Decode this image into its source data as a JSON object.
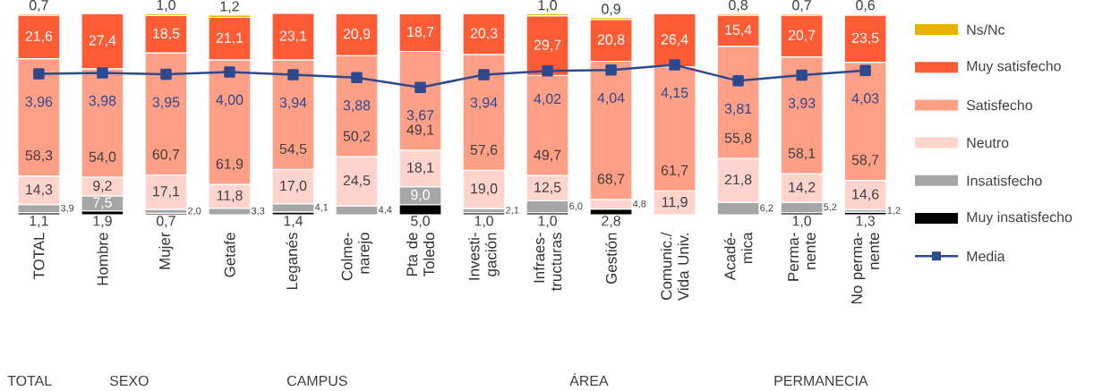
{
  "chart_data": {
    "type": "bar",
    "stacked": true,
    "tick_labels": "x",
    "legend": "right",
    "y2lim": [
      0.95,
      5.25
    ],
    "categories": [
      "TOTAL",
      "Hombre",
      "Mujer",
      "Getafe",
      "Leganés",
      "Colme-narejo",
      "Pta de Toledo",
      "Investi-gación",
      "Infraes-tructuras",
      "Gestión",
      "Comunic./ Vida Univ.",
      "Acadé-mica",
      "Perma-nente",
      "No perma-nente"
    ],
    "series": [
      {
        "name": "Muy insatisfecho",
        "color": "#000000",
        "values": [
          1.1,
          1.9,
          0.7,
          null,
          1.4,
          null,
          5.0,
          1.0,
          1.0,
          2.8,
          null,
          null,
          1.0,
          1.3
        ],
        "value_labels": [
          "1,1",
          "1,9",
          "0,7",
          null,
          "1,4",
          null,
          "5,0",
          "1,0",
          "1,0",
          "2,8",
          null,
          null,
          "1,0",
          "1,3"
        ]
      },
      {
        "name": "Insatisfecho",
        "color": "#a6a6a6",
        "values": [
          3.9,
          7.5,
          2.0,
          3.3,
          4.1,
          4.4,
          9.0,
          2.1,
          6.0,
          null,
          null,
          6.2,
          5.2,
          1.2
        ],
        "value_labels": [
          "3,9",
          "7,5",
          "2,0",
          "3,3",
          "4,1",
          "4,4",
          "9,0",
          "2,1",
          "6,0",
          null,
          null,
          "6,2",
          "5,2",
          "1,2"
        ]
      },
      {
        "name": "Neutro",
        "color": "#ffd4cc",
        "values": [
          14.3,
          9.2,
          17.1,
          11.8,
          17.0,
          24.5,
          18.1,
          19.0,
          12.5,
          4.8,
          11.9,
          21.8,
          14.2,
          14.6
        ],
        "value_labels": [
          "14,3",
          "9,2",
          "17,1",
          "11,8",
          "17,0",
          "24,5",
          "18,1",
          "19,0",
          "12,5",
          "4,8",
          "11,9",
          "21,8",
          "14,2",
          "14,6"
        ]
      },
      {
        "name": "Satisfecho",
        "color": "#ff9f86",
        "values": [
          58.3,
          54.0,
          60.7,
          61.9,
          54.5,
          50.2,
          49.1,
          57.6,
          49.7,
          68.7,
          61.7,
          55.8,
          58.1,
          58.7
        ],
        "value_labels": [
          "58,3",
          "54,0",
          "60,7",
          "61,9",
          "54,5",
          "50,2",
          "49,1",
          "57,6",
          "49,7",
          "68,7",
          "61,7",
          "55,8",
          "58,1",
          "58,7"
        ]
      },
      {
        "name": "Muy satisfecho",
        "color": "#ff5b35",
        "values": [
          21.6,
          27.4,
          18.5,
          21.1,
          23.1,
          20.9,
          18.7,
          20.3,
          29.7,
          20.8,
          26.4,
          15.4,
          20.7,
          23.5
        ],
        "value_labels": [
          "21,6",
          "27,4",
          "18,5",
          "21,1",
          "23,1",
          "20,9",
          "18,7",
          "20,3",
          "29,7",
          "20,8",
          "26,4",
          "15,4",
          "20,7",
          "23,5"
        ]
      },
      {
        "name": "Ns/Nc",
        "color": "#e8b000",
        "values": [
          0.7,
          null,
          1.0,
          1.2,
          null,
          null,
          null,
          null,
          1.0,
          0.9,
          null,
          0.8,
          0.7,
          0.6
        ],
        "value_labels": [
          "0,7",
          null,
          "1,0",
          "1,2",
          null,
          null,
          null,
          null,
          "1,0",
          "0,9",
          null,
          "0,8",
          "0,7",
          "0,6"
        ]
      },
      {
        "name": "Media",
        "type": "line",
        "axis": "y2",
        "marker": "square",
        "color": "#2e4a8e",
        "values": [
          3.96,
          3.98,
          3.95,
          4.0,
          3.94,
          3.88,
          3.67,
          3.94,
          4.02,
          4.04,
          4.15,
          3.81,
          3.93,
          4.03
        ],
        "value_labels": [
          "3,96",
          "3,98",
          "3,95",
          "4,00",
          "3,94",
          "3,88",
          "3,67",
          "3,94",
          "4,02",
          "4,04",
          "4,15",
          "3,81",
          "3,93",
          "4,03"
        ]
      }
    ],
    "annotations": [
      "TOTAL",
      "SEXO",
      "CAMPUS",
      "ÁREA",
      "PERMANECIA"
    ]
  }
}
